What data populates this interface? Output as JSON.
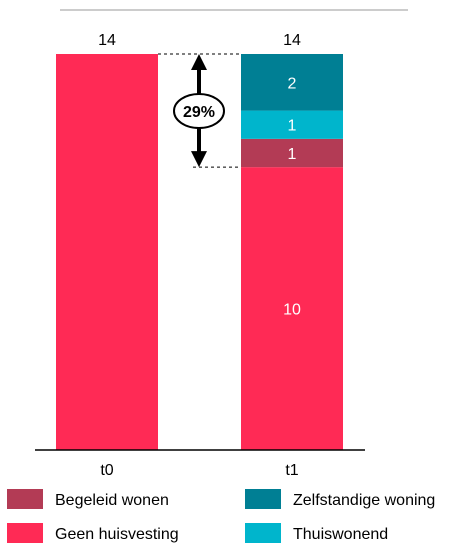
{
  "chart_data": {
    "type": "bar",
    "stacked": true,
    "categories": [
      "t0",
      "t1"
    ],
    "totals": [
      "14",
      "14"
    ],
    "series": [
      {
        "name": "Geen huisvesting",
        "color": "#FF2A55",
        "values": [
          14,
          10
        ]
      },
      {
        "name": "Begeleid wonen",
        "color": "#B33B55",
        "values": [
          0,
          1
        ]
      },
      {
        "name": "Thuiswonend",
        "color": "#00B5CC",
        "values": [
          0,
          1
        ]
      },
      {
        "name": "Zelfstandige woning",
        "color": "#007F94",
        "values": [
          0,
          2
        ]
      }
    ],
    "ylim": [
      0,
      14
    ],
    "annotation": {
      "label": "29%"
    },
    "legend": {
      "placement": "bottom",
      "items": [
        {
          "label": "Begeleid wonen",
          "color": "#B33B55"
        },
        {
          "label": "Zelfstandige woning",
          "color": "#007F94"
        },
        {
          "label": "Geen huisvesting",
          "color": "#FF2A55"
        },
        {
          "label": "Thuiswonend",
          "color": "#00B5CC"
        }
      ]
    }
  }
}
